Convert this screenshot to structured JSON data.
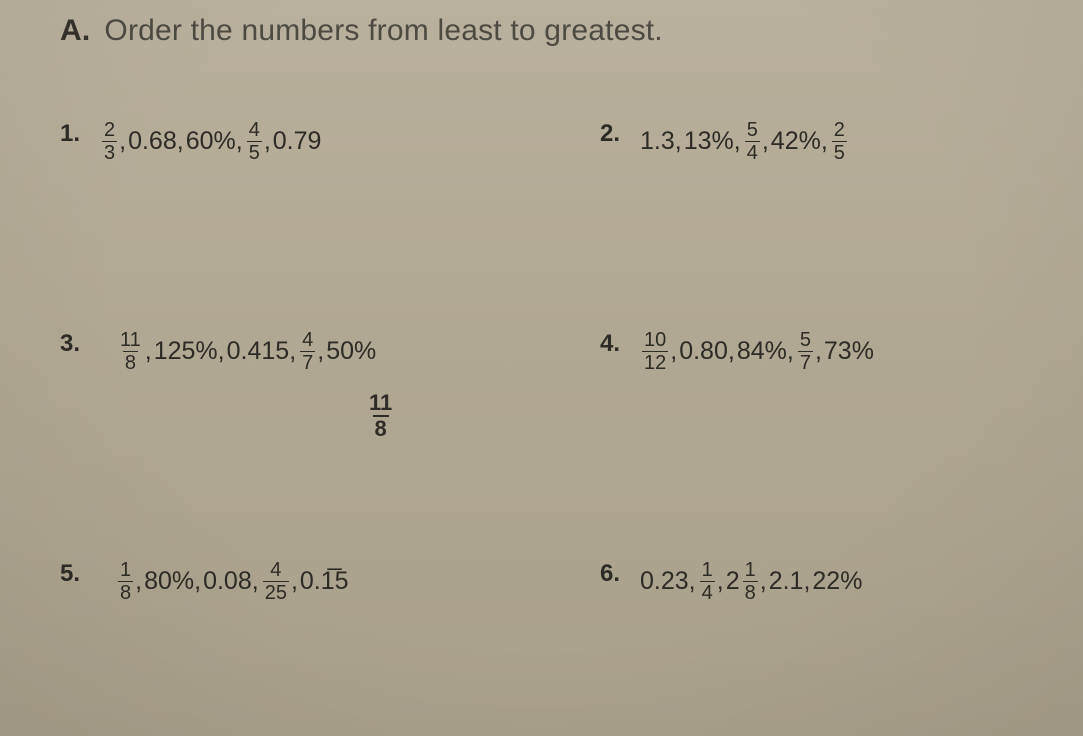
{
  "section": {
    "letter": "A.",
    "instruction": "Order the numbers from least to greatest."
  },
  "problems": [
    {
      "num": "1.",
      "items": [
        {
          "t": "frac",
          "n": "2",
          "d": "3"
        },
        {
          "t": "text",
          "v": "0.68"
        },
        {
          "t": "text",
          "v": "60%"
        },
        {
          "t": "frac",
          "n": "4",
          "d": "5"
        },
        {
          "t": "text",
          "v": "0.79"
        }
      ]
    },
    {
      "num": "2.",
      "items": [
        {
          "t": "text",
          "v": "1.3"
        },
        {
          "t": "text",
          "v": "13%"
        },
        {
          "t": "frac",
          "n": "5",
          "d": "4"
        },
        {
          "t": "text",
          "v": "42%"
        },
        {
          "t": "frac",
          "n": "2",
          "d": "5"
        }
      ]
    },
    {
      "num": "3.",
      "items": [
        {
          "t": "frac",
          "n": "11",
          "d": "8"
        },
        {
          "t": "text",
          "v": "125%"
        },
        {
          "t": "text",
          "v": "0.415"
        },
        {
          "t": "frac",
          "n": "4",
          "d": "7"
        },
        {
          "t": "text",
          "v": "50%"
        }
      ]
    },
    {
      "num": "4.",
      "items": [
        {
          "t": "frac",
          "n": "10",
          "d": "12"
        },
        {
          "t": "text",
          "v": "0.80"
        },
        {
          "t": "text",
          "v": "84%"
        },
        {
          "t": "frac",
          "n": "5",
          "d": "7"
        },
        {
          "t": "text",
          "v": "73%"
        }
      ]
    },
    {
      "num": "5.",
      "items": [
        {
          "t": "frac",
          "n": "1",
          "d": "8"
        },
        {
          "t": "text",
          "v": "80%"
        },
        {
          "t": "text",
          "v": "0.08"
        },
        {
          "t": "frac",
          "n": "4",
          "d": "25"
        },
        {
          "t": "text",
          "v": "0.1̅5"
        }
      ]
    },
    {
      "num": "6.",
      "items": [
        {
          "t": "text",
          "v": "0.23"
        },
        {
          "t": "frac",
          "n": "1",
          "d": "4"
        },
        {
          "t": "mixed",
          "w": "2",
          "n": "1",
          "d": "8"
        },
        {
          "t": "text",
          "v": "2.1"
        },
        {
          "t": "text",
          "v": "22%"
        }
      ]
    }
  ],
  "extra_fraction": {
    "n": "11",
    "d": "8"
  }
}
